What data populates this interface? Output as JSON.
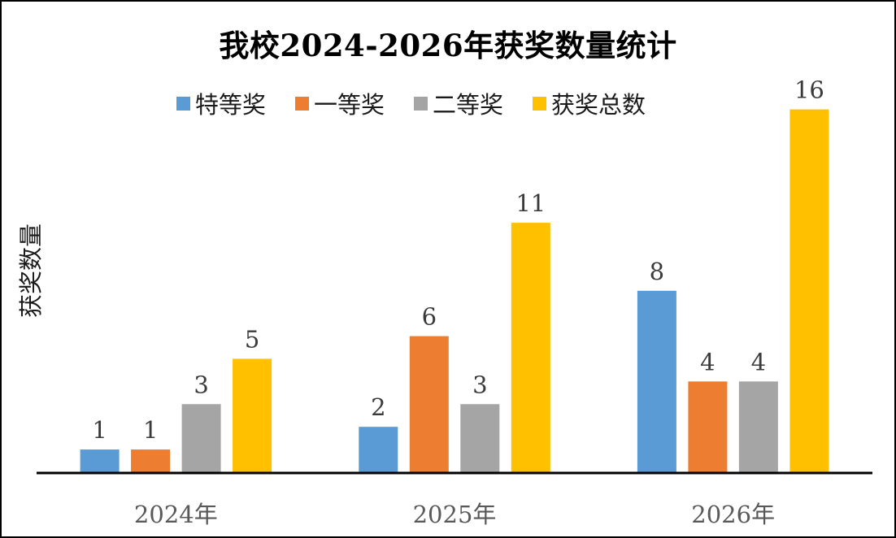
{
  "chart_data": {
    "type": "bar",
    "title": "我校2024-2026年获奖数量统计",
    "xlabel": "",
    "ylabel": "获奖数量",
    "categories": [
      "2024年",
      "2025年",
      "2026年"
    ],
    "series": [
      {
        "name": "特等奖",
        "color": "#5b9bd5",
        "values": [
          1,
          2,
          8
        ]
      },
      {
        "name": "一等奖",
        "color": "#ed7d31",
        "values": [
          1,
          6,
          4
        ]
      },
      {
        "name": "二等奖",
        "color": "#a5a5a5",
        "values": [
          3,
          3,
          4
        ]
      },
      {
        "name": "获奖总数",
        "color": "#ffc000",
        "values": [
          5,
          11,
          16
        ]
      }
    ],
    "ylim": [
      0,
      16
    ],
    "grid": false,
    "legend_position": "top",
    "data_labels": true
  }
}
